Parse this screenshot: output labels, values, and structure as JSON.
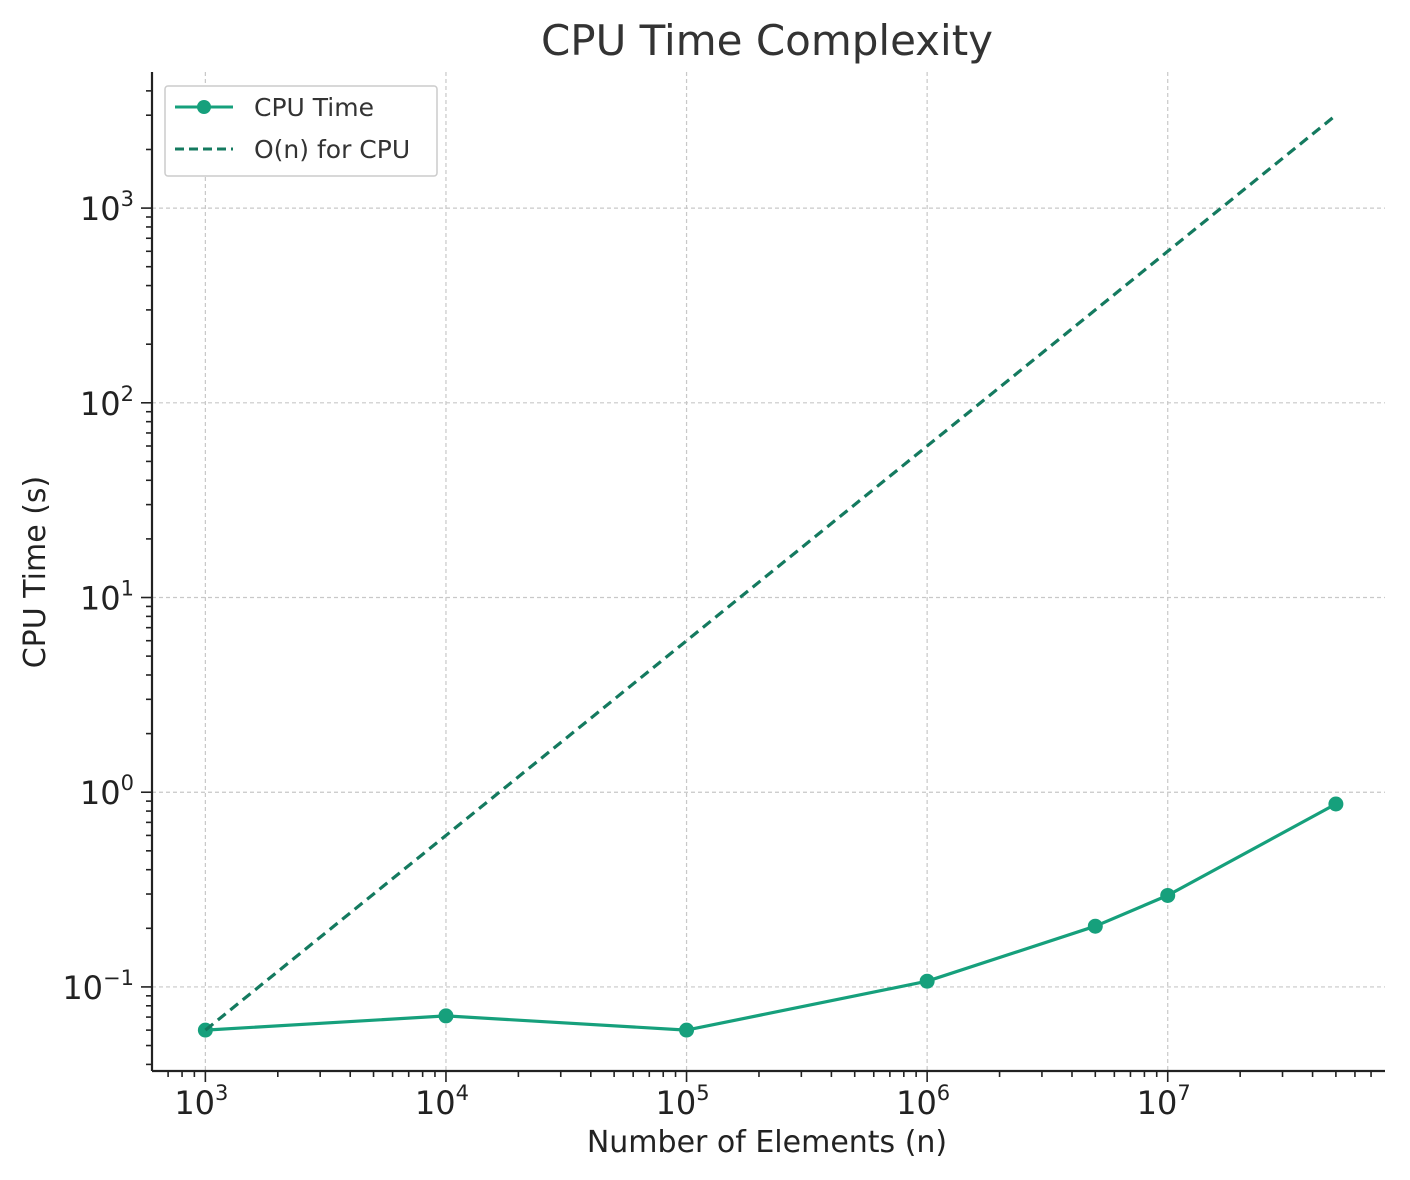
{
  "chart_data": {
    "type": "line",
    "title": "CPU Time Complexity",
    "xlabel": "Number of Elements (n)",
    "ylabel": "CPU Time (s)",
    "xscale": "log",
    "yscale": "log",
    "xlim": [
      600,
      80000000
    ],
    "ylim": [
      0.037,
      5000
    ],
    "grid": true,
    "legend_position": "top-left",
    "x_ticks": [
      {
        "base": "10",
        "exp": "3",
        "value": 1000
      },
      {
        "base": "10",
        "exp": "4",
        "value": 10000
      },
      {
        "base": "10",
        "exp": "5",
        "value": 100000
      },
      {
        "base": "10",
        "exp": "6",
        "value": 1000000
      },
      {
        "base": "10",
        "exp": "7",
        "value": 10000000
      }
    ],
    "y_ticks": [
      {
        "base": "10",
        "exp": "−1",
        "value": 0.1
      },
      {
        "base": "10",
        "exp": "0",
        "value": 1
      },
      {
        "base": "10",
        "exp": "1",
        "value": 10
      },
      {
        "base": "10",
        "exp": "2",
        "value": 100
      },
      {
        "base": "10",
        "exp": "3",
        "value": 1000
      }
    ],
    "series": [
      {
        "name": "CPU Time",
        "style": "solid-markers",
        "color": "#16a07c",
        "x": [
          1000,
          10000,
          100000,
          1000000,
          5000000,
          10000000,
          50000000
        ],
        "y": [
          0.06,
          0.071,
          0.06,
          0.107,
          0.205,
          0.295,
          0.87
        ]
      },
      {
        "name": "O(n) for CPU",
        "style": "dashed",
        "color": "#147a5f",
        "x": [
          1000,
          50000000
        ],
        "y": [
          0.06,
          3000
        ]
      }
    ]
  }
}
